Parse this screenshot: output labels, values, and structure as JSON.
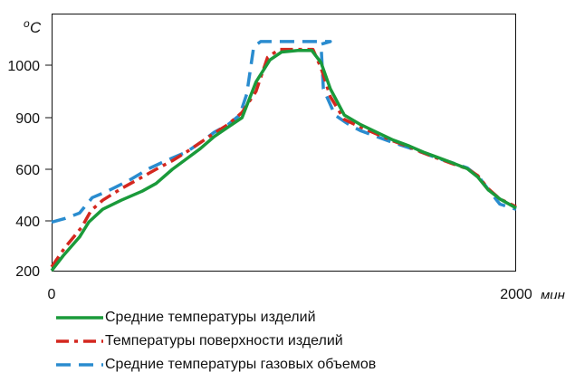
{
  "chart_data": {
    "type": "line",
    "ylabel_sup": "o",
    "ylabel": "C",
    "xlabel": "мин",
    "x_ticks": [
      "0",
      "2000"
    ],
    "y_ticks": [
      "200",
      "400",
      "600",
      "900",
      "1000"
    ],
    "xlim": [
      0,
      2000
    ],
    "grid": false,
    "legend_position": "bottom",
    "series": [
      {
        "name": "Средние температуры изделий",
        "color": "#1a9a3a",
        "style": "solid",
        "points": [
          [
            0,
            200
          ],
          [
            50,
            260
          ],
          [
            120,
            335
          ],
          [
            160,
            395
          ],
          [
            220,
            445
          ],
          [
            300,
            480
          ],
          [
            390,
            515
          ],
          [
            450,
            545
          ],
          [
            520,
            600
          ],
          [
            580,
            660
          ],
          [
            640,
            720
          ],
          [
            700,
            790
          ],
          [
            760,
            845
          ],
          [
            820,
            900
          ],
          [
            880,
            968
          ],
          [
            940,
            1010
          ],
          [
            990,
            1025
          ],
          [
            1060,
            1028
          ],
          [
            1120,
            1028
          ],
          [
            1160,
            1005
          ],
          [
            1200,
            955
          ],
          [
            1260,
            905
          ],
          [
            1330,
            860
          ],
          [
            1400,
            815
          ],
          [
            1470,
            770
          ],
          [
            1540,
            735
          ],
          [
            1600,
            700
          ],
          [
            1660,
            670
          ],
          [
            1720,
            640
          ],
          [
            1790,
            603
          ],
          [
            1835,
            570
          ],
          [
            1880,
            520
          ],
          [
            1930,
            485
          ],
          [
            2000,
            450
          ]
        ]
      },
      {
        "name": "Температуры поверхности изделий",
        "color": "#d4271f",
        "style": "dashdot",
        "points": [
          [
            0,
            215
          ],
          [
            55,
            290
          ],
          [
            130,
            375
          ],
          [
            170,
            440
          ],
          [
            220,
            480
          ],
          [
            300,
            525
          ],
          [
            380,
            565
          ],
          [
            450,
            600
          ],
          [
            520,
            650
          ],
          [
            580,
            700
          ],
          [
            640,
            755
          ],
          [
            700,
            810
          ],
          [
            760,
            860
          ],
          [
            820,
            910
          ],
          [
            880,
            950
          ],
          [
            930,
            1015
          ],
          [
            980,
            1030
          ],
          [
            1070,
            1030
          ],
          [
            1125,
            1030
          ],
          [
            1160,
            995
          ],
          [
            1200,
            940
          ],
          [
            1260,
            890
          ],
          [
            1330,
            845
          ],
          [
            1400,
            805
          ],
          [
            1470,
            765
          ],
          [
            1540,
            730
          ],
          [
            1600,
            695
          ],
          [
            1660,
            665
          ],
          [
            1720,
            635
          ],
          [
            1790,
            603
          ],
          [
            1835,
            575
          ],
          [
            1880,
            525
          ],
          [
            1930,
            485
          ],
          [
            2000,
            455
          ]
        ]
      },
      {
        "name": "Средние температуры газовых объемов",
        "color": "#2a8ccf",
        "style": "dashed",
        "points": [
          [
            0,
            395
          ],
          [
            60,
            410
          ],
          [
            120,
            430
          ],
          [
            175,
            490
          ],
          [
            240,
            515
          ],
          [
            330,
            555
          ],
          [
            420,
            605
          ],
          [
            500,
            655
          ],
          [
            580,
            700
          ],
          [
            640,
            755
          ],
          [
            700,
            815
          ],
          [
            760,
            860
          ],
          [
            810,
            905
          ],
          [
            840,
            945
          ],
          [
            870,
            1035
          ],
          [
            900,
            1045
          ],
          [
            1070,
            1045
          ],
          [
            1200,
            1045
          ],
          [
            1160,
            1040
          ],
          [
            1170,
            955
          ],
          [
            1220,
            905
          ],
          [
            1280,
            860
          ],
          [
            1330,
            825
          ],
          [
            1400,
            790
          ],
          [
            1470,
            755
          ],
          [
            1540,
            725
          ],
          [
            1600,
            695
          ],
          [
            1660,
            665
          ],
          [
            1720,
            640
          ],
          [
            1790,
            608
          ],
          [
            1840,
            570
          ],
          [
            1890,
            510
          ],
          [
            1930,
            465
          ],
          [
            2000,
            445
          ]
        ]
      }
    ]
  }
}
